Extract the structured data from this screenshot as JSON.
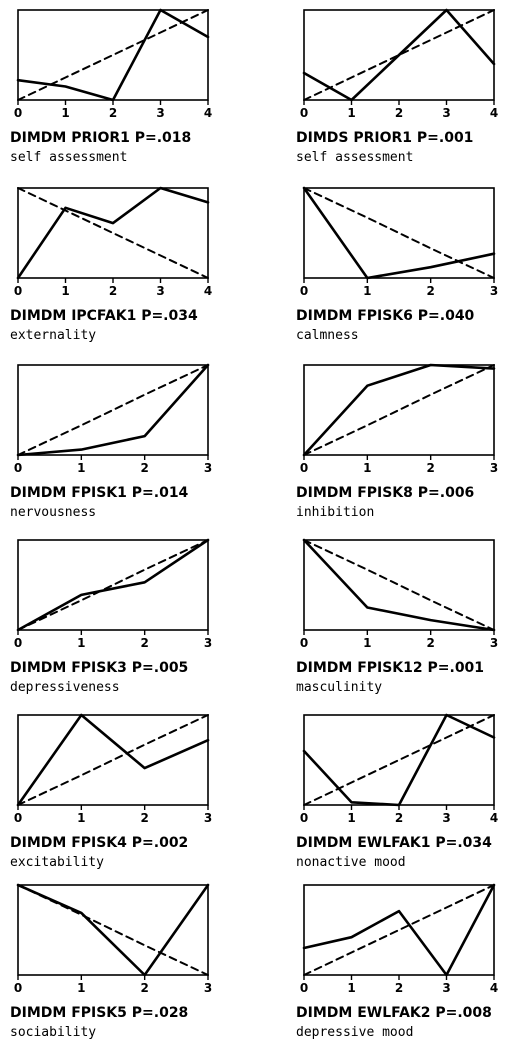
{
  "chart_data": [
    {
      "type": "line",
      "title": "DIMDM PRIOR1 P=.018",
      "subtitle": "self assessment",
      "x": [
        0,
        1,
        2,
        3,
        4
      ],
      "xticks": [
        "0",
        "1",
        "2",
        "3",
        "4"
      ],
      "series": [
        {
          "style": "solid",
          "values": [
            0.22,
            0.15,
            0.0,
            1.0,
            0.7
          ]
        },
        {
          "style": "dashed",
          "values": [
            0.0,
            0.25,
            0.5,
            0.75,
            1.0
          ]
        }
      ]
    },
    {
      "type": "line",
      "title": "DIMDS PRIOR1 P=.001",
      "subtitle": "self assessment",
      "x": [
        0,
        1,
        2,
        3,
        4
      ],
      "xticks": [
        "0",
        "1",
        "2",
        "3",
        "4"
      ],
      "series": [
        {
          "style": "solid",
          "values": [
            0.3,
            0.0,
            0.5,
            1.0,
            0.4
          ]
        },
        {
          "style": "dashed",
          "values": [
            0.0,
            0.25,
            0.5,
            0.75,
            1.0
          ]
        }
      ]
    },
    {
      "type": "line",
      "title": "DIMDM IPCFAK1 P=.034",
      "subtitle": "externality",
      "x": [
        0,
        1,
        2,
        3,
        4
      ],
      "xticks": [
        "0",
        "1",
        "2",
        "3",
        "4"
      ],
      "series": [
        {
          "style": "solid",
          "values": [
            0.0,
            0.78,
            0.61,
            1.0,
            0.84
          ]
        },
        {
          "style": "dashed",
          "values": [
            1.0,
            0.75,
            0.5,
            0.25,
            0.0
          ]
        }
      ]
    },
    {
      "type": "line",
      "title": "DIMDM FPISK6 P=.040",
      "subtitle": "calmness",
      "x": [
        0,
        1,
        2,
        3
      ],
      "xticks": [
        "0",
        "1",
        "2",
        "3"
      ],
      "series": [
        {
          "style": "solid",
          "values": [
            1.0,
            0.0,
            0.12,
            0.27
          ]
        },
        {
          "style": "dashed",
          "values": [
            1.0,
            0.67,
            0.33,
            0.0
          ]
        }
      ]
    },
    {
      "type": "line",
      "title": "DIMDM FPISK1 P=.014",
      "subtitle": "nervousness",
      "x": [
        0,
        1,
        2,
        3
      ],
      "xticks": [
        "0",
        "1",
        "2",
        "3"
      ],
      "series": [
        {
          "style": "solid",
          "values": [
            0.0,
            0.06,
            0.21,
            1.0
          ]
        },
        {
          "style": "dashed",
          "values": [
            0.0,
            0.33,
            0.67,
            1.0
          ]
        }
      ]
    },
    {
      "type": "line",
      "title": "DIMDM FPISK8 P=.006",
      "subtitle": "inhibition",
      "x": [
        0,
        1,
        2,
        3
      ],
      "xticks": [
        "0",
        "1",
        "2",
        "3"
      ],
      "series": [
        {
          "style": "solid",
          "values": [
            0.0,
            0.77,
            1.0,
            0.96
          ]
        },
        {
          "style": "dashed",
          "values": [
            0.0,
            0.33,
            0.67,
            1.0
          ]
        }
      ]
    },
    {
      "type": "line",
      "title": "DIMDM FPISK3 P=.005",
      "subtitle": "depressiveness",
      "x": [
        0,
        1,
        2,
        3
      ],
      "xticks": [
        "0",
        "1",
        "2",
        "3"
      ],
      "series": [
        {
          "style": "solid",
          "values": [
            0.0,
            0.39,
            0.53,
            1.0
          ]
        },
        {
          "style": "dashed",
          "values": [
            0.0,
            0.33,
            0.67,
            1.0
          ]
        }
      ]
    },
    {
      "type": "line",
      "title": "DIMDM FPISK12 P=.001",
      "subtitle": "masculinity",
      "x": [
        0,
        1,
        2,
        3
      ],
      "xticks": [
        "0",
        "1",
        "2",
        "3"
      ],
      "series": [
        {
          "style": "solid",
          "values": [
            1.0,
            0.25,
            0.11,
            0.0
          ]
        },
        {
          "style": "dashed",
          "values": [
            1.0,
            0.67,
            0.33,
            0.0
          ]
        }
      ]
    },
    {
      "type": "line",
      "title": "DIMDM FPISK4 P=.002",
      "subtitle": "excitability",
      "x": [
        0,
        1,
        2,
        3
      ],
      "xticks": [
        "0",
        "1",
        "2",
        "3"
      ],
      "series": [
        {
          "style": "solid",
          "values": [
            0.0,
            1.0,
            0.41,
            0.72
          ]
        },
        {
          "style": "dashed",
          "values": [
            0.0,
            0.33,
            0.67,
            1.0
          ]
        }
      ]
    },
    {
      "type": "line",
      "title": "DIMDM EWLFAK1 P=.034",
      "subtitle": "nonactive mood",
      "x": [
        0,
        1,
        2,
        3,
        4
      ],
      "xticks": [
        "0",
        "1",
        "2",
        "3",
        "4"
      ],
      "series": [
        {
          "style": "solid",
          "values": [
            0.6,
            0.03,
            0.0,
            1.0,
            0.75
          ]
        },
        {
          "style": "dashed",
          "values": [
            0.0,
            0.25,
            0.5,
            0.75,
            1.0
          ]
        }
      ]
    },
    {
      "type": "line",
      "title": "DIMDM FPISK5 P=.028",
      "subtitle": "sociability",
      "x": [
        0,
        1,
        2,
        3
      ],
      "xticks": [
        "0",
        "1",
        "2",
        "3"
      ],
      "series": [
        {
          "style": "solid",
          "values": [
            1.0,
            0.69,
            0.0,
            1.0
          ]
        },
        {
          "style": "dashed",
          "values": [
            1.0,
            0.67,
            0.33,
            0.0
          ]
        }
      ]
    },
    {
      "type": "line",
      "title": "DIMDM EWLFAK2 P=.008",
      "subtitle": "depressive mood",
      "x": [
        0,
        1,
        2,
        3,
        4
      ],
      "xticks": [
        "0",
        "1",
        "2",
        "3",
        "4"
      ],
      "series": [
        {
          "style": "solid",
          "values": [
            0.3,
            0.42,
            0.71,
            0.0,
            1.0
          ]
        },
        {
          "style": "dashed",
          "values": [
            0.0,
            0.25,
            0.5,
            0.75,
            1.0
          ]
        }
      ]
    }
  ]
}
